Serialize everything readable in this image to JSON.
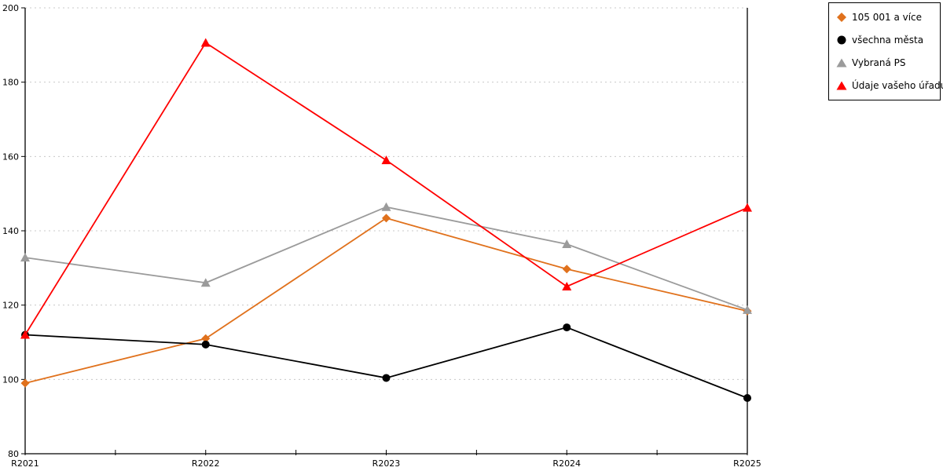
{
  "chart_data": {
    "type": "line",
    "title": "",
    "xlabel": "",
    "ylabel": "",
    "categories": [
      "R2021",
      "R2022",
      "R2023",
      "R2024",
      "R2025"
    ],
    "series": [
      {
        "name": "105 001 a více",
        "color": "#E0711C",
        "marker": "diamond",
        "values": [
          99.0,
          111.0,
          143.4,
          129.7,
          118.4
        ]
      },
      {
        "name": "všechna města",
        "color": "#000000",
        "marker": "circle",
        "values": [
          112.0,
          109.4,
          100.4,
          114.0,
          95.0
        ]
      },
      {
        "name": "Vybraná PS",
        "color": "#9B9B9B",
        "marker": "triangle",
        "values": [
          132.8,
          126.0,
          146.4,
          136.4,
          118.7
        ]
      },
      {
        "name": "Údaje vašeho úřadu",
        "color": "#FF0000",
        "marker": "triangle",
        "values": [
          112.0,
          190.6,
          159.0,
          125.0,
          146.2
        ]
      }
    ],
    "ylim": [
      80,
      200
    ],
    "yticks": [
      80,
      100,
      120,
      140,
      160,
      180,
      200
    ],
    "grid": "horizontal-dotted",
    "grid_color": "#C8C8C8",
    "axis_color": "#000000",
    "legend_position": "outside-top-right",
    "legend_items": [
      "105 001 a více",
      "všechna města",
      "Vybraná PS",
      "Údaje vašeho úřadu"
    ]
  }
}
